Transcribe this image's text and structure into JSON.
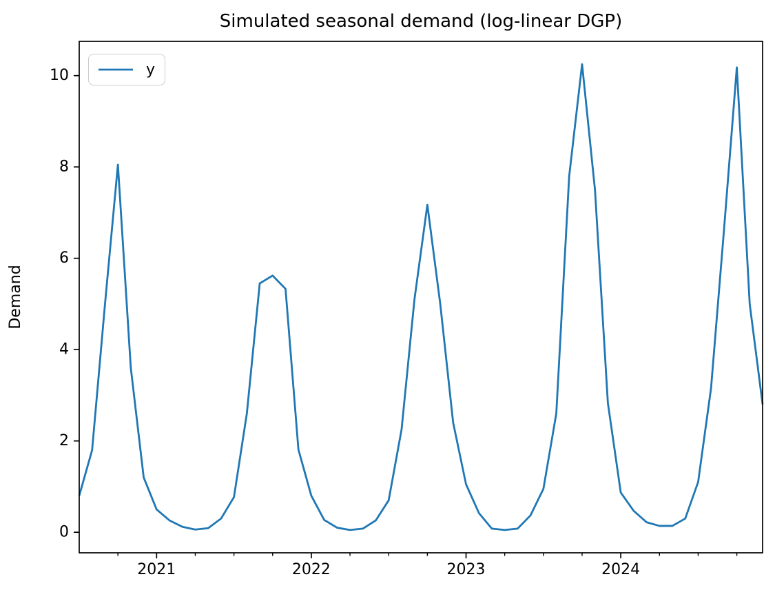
{
  "figure": {
    "background": "#ffffff",
    "frame_color": "#000000"
  },
  "chart_data": {
    "type": "line",
    "title": "Simulated seasonal demand (log-linear DGP)",
    "xlabel": "",
    "ylabel": "Demand",
    "grid": false,
    "legend": {
      "position": "upper left",
      "entries": [
        {
          "label": "y",
          "color": "#1f77b4"
        }
      ]
    },
    "ylim": [
      -0.45,
      10.75
    ],
    "yticks": [
      0,
      2,
      4,
      6,
      8,
      10
    ],
    "x_major_ticks": [
      {
        "label": "2021",
        "month": "2021-01"
      },
      {
        "label": "2022",
        "month": "2022-01"
      },
      {
        "label": "2023",
        "month": "2023-01"
      },
      {
        "label": "2024",
        "month": "2024-01"
      }
    ],
    "x_minor_ticks": [
      "2020-10",
      "2021-04",
      "2021-07",
      "2021-10",
      "2022-04",
      "2022-07",
      "2022-10",
      "2023-04",
      "2023-07",
      "2023-10",
      "2024-04",
      "2024-07",
      "2024-10"
    ],
    "x": [
      "2020-07",
      "2020-08",
      "2020-09",
      "2020-10",
      "2020-11",
      "2020-12",
      "2021-01",
      "2021-02",
      "2021-03",
      "2021-04",
      "2021-05",
      "2021-06",
      "2021-07",
      "2021-08",
      "2021-09",
      "2021-10",
      "2021-11",
      "2021-12",
      "2022-01",
      "2022-02",
      "2022-03",
      "2022-04",
      "2022-05",
      "2022-06",
      "2022-07",
      "2022-08",
      "2022-09",
      "2022-10",
      "2022-11",
      "2022-12",
      "2023-01",
      "2023-02",
      "2023-03",
      "2023-04",
      "2023-05",
      "2023-06",
      "2023-07",
      "2023-08",
      "2023-09",
      "2023-10",
      "2023-11",
      "2023-12",
      "2024-01",
      "2024-02",
      "2024-03",
      "2024-04",
      "2024-05",
      "2024-06",
      "2024-07",
      "2024-08",
      "2024-09",
      "2024-10",
      "2024-11",
      "2024-12"
    ],
    "series": [
      {
        "name": "y",
        "color": "#1f77b4",
        "values": [
          0.8,
          1.8,
          5.0,
          8.05,
          3.6,
          1.2,
          0.5,
          0.26,
          0.12,
          0.06,
          0.09,
          0.3,
          0.77,
          2.6,
          5.45,
          5.62,
          5.33,
          1.81,
          0.8,
          0.27,
          0.1,
          0.05,
          0.08,
          0.26,
          0.7,
          2.25,
          5.1,
          7.17,
          5.0,
          2.4,
          1.05,
          0.42,
          0.08,
          0.05,
          0.08,
          0.37,
          0.95,
          2.6,
          7.8,
          10.25,
          7.5,
          2.83,
          0.87,
          0.47,
          0.22,
          0.14,
          0.14,
          0.3,
          1.1,
          3.15,
          6.6,
          10.18,
          5.0,
          2.8
        ]
      }
    ]
  }
}
